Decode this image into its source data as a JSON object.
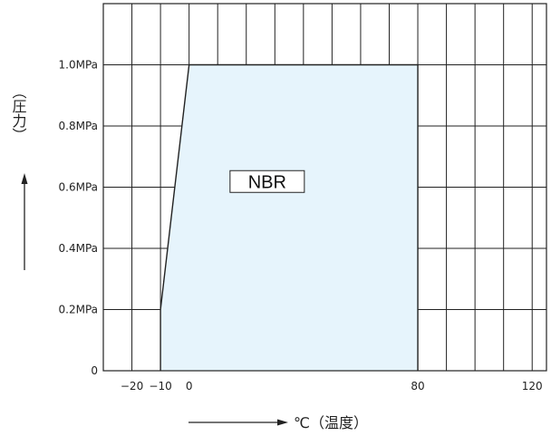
{
  "chart_data": {
    "type": "area",
    "title": "",
    "xlabel": "℃（温度）",
    "ylabel": "（圧力）",
    "xlim": [
      -30,
      125
    ],
    "ylim": [
      0,
      1.2
    ],
    "x_ticks": [
      -20,
      -10,
      0,
      80,
      120
    ],
    "x_tick_labels": [
      "−20",
      "−10",
      "0",
      "80",
      "120"
    ],
    "y_ticks": [
      0,
      0.2,
      0.4,
      0.6,
      0.8,
      1.0
    ],
    "y_tick_labels": [
      "0",
      "0.2MPa",
      "0.4MPa",
      "0.6MPa",
      "0.8MPa",
      "1.0MPa"
    ],
    "x_grid": [
      -20,
      -10,
      0,
      10,
      20,
      30,
      40,
      50,
      60,
      70,
      80,
      90,
      100,
      110,
      120,
      125
    ],
    "y_grid": [
      0.2,
      0.4,
      0.6,
      0.8,
      1.0
    ],
    "grid": true,
    "region": {
      "name": "NBR",
      "fill": "#e6f4fc",
      "boundary": [
        {
          "x": -10,
          "y": 0
        },
        {
          "x": -10,
          "y": 0.2
        },
        {
          "x": 0,
          "y": 1.0
        },
        {
          "x": 80,
          "y": 1.0
        },
        {
          "x": 80,
          "y": 0
        }
      ]
    }
  }
}
